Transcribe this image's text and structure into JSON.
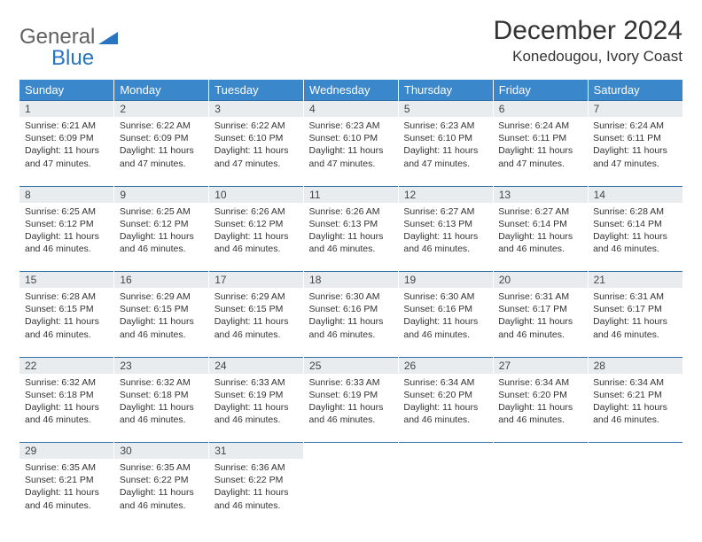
{
  "logo": {
    "text_general": "General",
    "text_blue": "Blue"
  },
  "header": {
    "month_title": "December 2024",
    "location": "Konedougou, Ivory Coast"
  },
  "colors": {
    "header_bg": "#3a87cc",
    "header_text": "#ffffff",
    "daynum_bg": "#e9ecef",
    "row_border": "#2f6fa8",
    "logo_gray": "#616161",
    "logo_blue": "#2874c1",
    "body_text": "#333333",
    "page_bg": "#ffffff"
  },
  "typography": {
    "month_title_fontsize": 30,
    "location_fontsize": 17,
    "dayheader_fontsize": 13,
    "daynum_fontsize": 12,
    "cell_fontsize": 10.5,
    "logo_fontsize": 24
  },
  "day_headers": [
    "Sunday",
    "Monday",
    "Tuesday",
    "Wednesday",
    "Thursday",
    "Friday",
    "Saturday"
  ],
  "weeks": [
    {
      "nums": [
        "1",
        "2",
        "3",
        "4",
        "5",
        "6",
        "7"
      ],
      "cells": [
        {
          "sunrise": "Sunrise: 6:21 AM",
          "sunset": "Sunset: 6:09 PM",
          "daylight": "Daylight: 11 hours and 47 minutes."
        },
        {
          "sunrise": "Sunrise: 6:22 AM",
          "sunset": "Sunset: 6:09 PM",
          "daylight": "Daylight: 11 hours and 47 minutes."
        },
        {
          "sunrise": "Sunrise: 6:22 AM",
          "sunset": "Sunset: 6:10 PM",
          "daylight": "Daylight: 11 hours and 47 minutes."
        },
        {
          "sunrise": "Sunrise: 6:23 AM",
          "sunset": "Sunset: 6:10 PM",
          "daylight": "Daylight: 11 hours and 47 minutes."
        },
        {
          "sunrise": "Sunrise: 6:23 AM",
          "sunset": "Sunset: 6:10 PM",
          "daylight": "Daylight: 11 hours and 47 minutes."
        },
        {
          "sunrise": "Sunrise: 6:24 AM",
          "sunset": "Sunset: 6:11 PM",
          "daylight": "Daylight: 11 hours and 47 minutes."
        },
        {
          "sunrise": "Sunrise: 6:24 AM",
          "sunset": "Sunset: 6:11 PM",
          "daylight": "Daylight: 11 hours and 47 minutes."
        }
      ]
    },
    {
      "nums": [
        "8",
        "9",
        "10",
        "11",
        "12",
        "13",
        "14"
      ],
      "cells": [
        {
          "sunrise": "Sunrise: 6:25 AM",
          "sunset": "Sunset: 6:12 PM",
          "daylight": "Daylight: 11 hours and 46 minutes."
        },
        {
          "sunrise": "Sunrise: 6:25 AM",
          "sunset": "Sunset: 6:12 PM",
          "daylight": "Daylight: 11 hours and 46 minutes."
        },
        {
          "sunrise": "Sunrise: 6:26 AM",
          "sunset": "Sunset: 6:12 PM",
          "daylight": "Daylight: 11 hours and 46 minutes."
        },
        {
          "sunrise": "Sunrise: 6:26 AM",
          "sunset": "Sunset: 6:13 PM",
          "daylight": "Daylight: 11 hours and 46 minutes."
        },
        {
          "sunrise": "Sunrise: 6:27 AM",
          "sunset": "Sunset: 6:13 PM",
          "daylight": "Daylight: 11 hours and 46 minutes."
        },
        {
          "sunrise": "Sunrise: 6:27 AM",
          "sunset": "Sunset: 6:14 PM",
          "daylight": "Daylight: 11 hours and 46 minutes."
        },
        {
          "sunrise": "Sunrise: 6:28 AM",
          "sunset": "Sunset: 6:14 PM",
          "daylight": "Daylight: 11 hours and 46 minutes."
        }
      ]
    },
    {
      "nums": [
        "15",
        "16",
        "17",
        "18",
        "19",
        "20",
        "21"
      ],
      "cells": [
        {
          "sunrise": "Sunrise: 6:28 AM",
          "sunset": "Sunset: 6:15 PM",
          "daylight": "Daylight: 11 hours and 46 minutes."
        },
        {
          "sunrise": "Sunrise: 6:29 AM",
          "sunset": "Sunset: 6:15 PM",
          "daylight": "Daylight: 11 hours and 46 minutes."
        },
        {
          "sunrise": "Sunrise: 6:29 AM",
          "sunset": "Sunset: 6:15 PM",
          "daylight": "Daylight: 11 hours and 46 minutes."
        },
        {
          "sunrise": "Sunrise: 6:30 AM",
          "sunset": "Sunset: 6:16 PM",
          "daylight": "Daylight: 11 hours and 46 minutes."
        },
        {
          "sunrise": "Sunrise: 6:30 AM",
          "sunset": "Sunset: 6:16 PM",
          "daylight": "Daylight: 11 hours and 46 minutes."
        },
        {
          "sunrise": "Sunrise: 6:31 AM",
          "sunset": "Sunset: 6:17 PM",
          "daylight": "Daylight: 11 hours and 46 minutes."
        },
        {
          "sunrise": "Sunrise: 6:31 AM",
          "sunset": "Sunset: 6:17 PM",
          "daylight": "Daylight: 11 hours and 46 minutes."
        }
      ]
    },
    {
      "nums": [
        "22",
        "23",
        "24",
        "25",
        "26",
        "27",
        "28"
      ],
      "cells": [
        {
          "sunrise": "Sunrise: 6:32 AM",
          "sunset": "Sunset: 6:18 PM",
          "daylight": "Daylight: 11 hours and 46 minutes."
        },
        {
          "sunrise": "Sunrise: 6:32 AM",
          "sunset": "Sunset: 6:18 PM",
          "daylight": "Daylight: 11 hours and 46 minutes."
        },
        {
          "sunrise": "Sunrise: 6:33 AM",
          "sunset": "Sunset: 6:19 PM",
          "daylight": "Daylight: 11 hours and 46 minutes."
        },
        {
          "sunrise": "Sunrise: 6:33 AM",
          "sunset": "Sunset: 6:19 PM",
          "daylight": "Daylight: 11 hours and 46 minutes."
        },
        {
          "sunrise": "Sunrise: 6:34 AM",
          "sunset": "Sunset: 6:20 PM",
          "daylight": "Daylight: 11 hours and 46 minutes."
        },
        {
          "sunrise": "Sunrise: 6:34 AM",
          "sunset": "Sunset: 6:20 PM",
          "daylight": "Daylight: 11 hours and 46 minutes."
        },
        {
          "sunrise": "Sunrise: 6:34 AM",
          "sunset": "Sunset: 6:21 PM",
          "daylight": "Daylight: 11 hours and 46 minutes."
        }
      ]
    },
    {
      "nums": [
        "29",
        "30",
        "31",
        "",
        "",
        "",
        ""
      ],
      "cells": [
        {
          "sunrise": "Sunrise: 6:35 AM",
          "sunset": "Sunset: 6:21 PM",
          "daylight": "Daylight: 11 hours and 46 minutes."
        },
        {
          "sunrise": "Sunrise: 6:35 AM",
          "sunset": "Sunset: 6:22 PM",
          "daylight": "Daylight: 11 hours and 46 minutes."
        },
        {
          "sunrise": "Sunrise: 6:36 AM",
          "sunset": "Sunset: 6:22 PM",
          "daylight": "Daylight: 11 hours and 46 minutes."
        },
        null,
        null,
        null,
        null
      ]
    }
  ]
}
